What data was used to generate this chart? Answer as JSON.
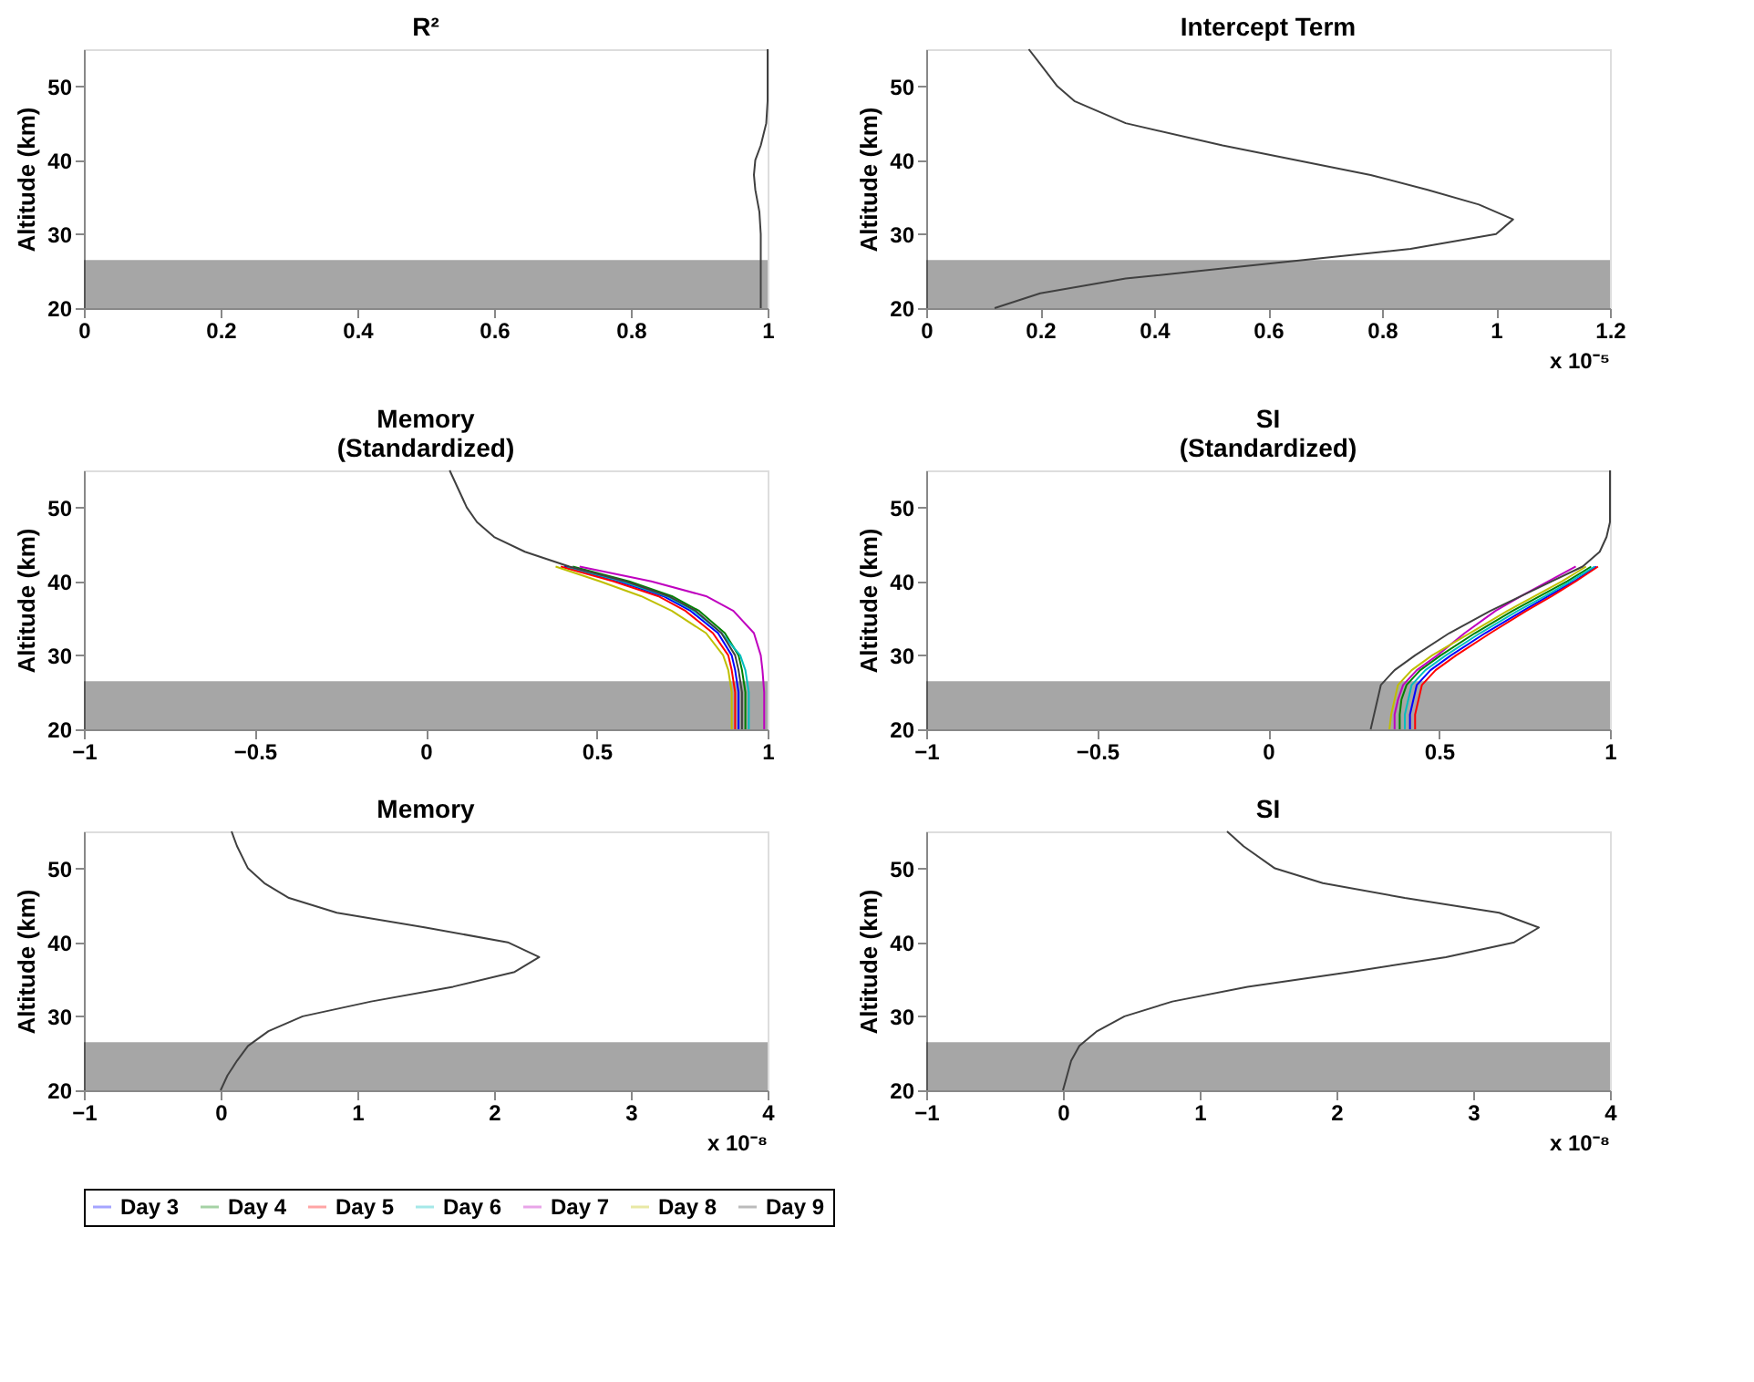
{
  "chart_data": [
    {
      "type": "line",
      "title": "R²",
      "ylabel": "Altitude (km)",
      "xlim": [
        0,
        1
      ],
      "xticks": [
        0,
        0.2,
        0.4,
        0.6,
        0.8,
        1
      ],
      "ylim": [
        20,
        55
      ],
      "yticks": [
        20,
        30,
        40,
        50
      ],
      "bands": [
        {
          "axis": "y",
          "from": 20,
          "to": 26.5,
          "color": "#000000"
        }
      ],
      "series": [
        {
          "color": "#404040",
          "x": [
            0.99,
            0.99,
            0.99,
            0.988,
            0.982,
            0.98,
            0.982,
            0.99,
            0.998,
            1.0,
            1.0
          ],
          "values": [
            20,
            25,
            30,
            33,
            36,
            38,
            40,
            42,
            45,
            48,
            55
          ]
        }
      ]
    },
    {
      "type": "line",
      "title": "Intercept Term",
      "ylabel": "Altitude (km)",
      "xlim": [
        0,
        1.2
      ],
      "xticks": [
        0,
        0.2,
        0.4,
        0.6,
        0.8,
        1,
        1.2
      ],
      "ylim": [
        20,
        55
      ],
      "yticks": [
        20,
        30,
        40,
        50
      ],
      "annotations": [
        "x 10⁻⁵"
      ],
      "bands": [
        {
          "axis": "y",
          "from": 20,
          "to": 26.5,
          "color": "#000000"
        }
      ],
      "series": [
        {
          "color": "#404040",
          "x": [
            0.12,
            0.2,
            0.35,
            0.6,
            0.85,
            1.0,
            1.03,
            0.97,
            0.88,
            0.78,
            0.65,
            0.52,
            0.35,
            0.26,
            0.23,
            0.2,
            0.18
          ],
          "values": [
            20,
            22,
            24,
            26,
            28,
            30,
            32,
            34,
            36,
            38,
            40,
            42,
            45,
            48,
            50,
            53,
            55
          ]
        }
      ]
    },
    {
      "type": "line",
      "title": "Memory\n(Standardized)",
      "ylabel": "Altitude (km)",
      "xlim": [
        -1,
        1
      ],
      "xticks": [
        -1,
        -0.5,
        0,
        0.5,
        1
      ],
      "ylim": [
        20,
        55
      ],
      "yticks": [
        20,
        30,
        40,
        50
      ],
      "legend": "bottom",
      "bands": [
        {
          "axis": "y",
          "from": 20,
          "to": 26.5,
          "color": "#000000"
        }
      ],
      "series": [
        {
          "name": "Day 3",
          "color": "#0000ff",
          "x": [
            0.915,
            0.915,
            0.905,
            0.895,
            0.855,
            0.775,
            0.695,
            0.565,
            0.405
          ],
          "values": [
            20,
            25,
            28,
            30,
            33,
            36,
            38,
            40,
            42
          ]
        },
        {
          "name": "Day 4",
          "color": "#008000",
          "x": [
            0.935,
            0.935,
            0.925,
            0.915,
            0.875,
            0.8,
            0.72,
            0.595,
            0.43
          ],
          "values": [
            20,
            25,
            28,
            30,
            33,
            36,
            38,
            40,
            42
          ]
        },
        {
          "name": "Day 5",
          "color": "#ff0000",
          "x": [
            0.905,
            0.905,
            0.895,
            0.885,
            0.84,
            0.76,
            0.68,
            0.55,
            0.395
          ],
          "values": [
            20,
            25,
            28,
            30,
            33,
            36,
            38,
            40,
            42
          ]
        },
        {
          "name": "Day 6",
          "color": "#00bfbf",
          "x": [
            0.945,
            0.945,
            0.935,
            0.92,
            0.865,
            0.785,
            0.705,
            0.575,
            0.415
          ],
          "values": [
            20,
            25,
            28,
            30,
            33,
            36,
            38,
            40,
            42
          ]
        },
        {
          "name": "Day 7",
          "color": "#bf00bf",
          "x": [
            0.99,
            0.99,
            0.985,
            0.98,
            0.96,
            0.9,
            0.82,
            0.66,
            0.45
          ],
          "values": [
            20,
            25,
            28,
            30,
            33,
            36,
            38,
            40,
            42
          ]
        },
        {
          "name": "Day 8",
          "color": "#bfbf00",
          "x": [
            0.895,
            0.895,
            0.885,
            0.87,
            0.82,
            0.72,
            0.63,
            0.51,
            0.38
          ],
          "values": [
            20,
            25,
            28,
            30,
            33,
            36,
            38,
            40,
            42
          ]
        },
        {
          "name": "Day 9",
          "color": "#404040",
          "x": [
            0.925,
            0.925,
            0.915,
            0.905,
            0.865,
            0.79,
            0.71,
            0.585,
            0.42,
            0.29,
            0.2,
            0.15,
            0.12,
            0.09,
            0.07
          ],
          "values": [
            20,
            25,
            28,
            30,
            33,
            36,
            38,
            40,
            42,
            44,
            46,
            48,
            50,
            53,
            55
          ]
        }
      ]
    },
    {
      "type": "line",
      "title": "SI\n(Standardized)",
      "ylabel": "Altitude (km)",
      "xlim": [
        -1,
        1
      ],
      "xticks": [
        -1,
        -0.5,
        0,
        0.5,
        1
      ],
      "ylim": [
        20,
        55
      ],
      "yticks": [
        20,
        30,
        40,
        50
      ],
      "bands": [
        {
          "axis": "y",
          "from": 20,
          "to": 26.5,
          "color": "#000000"
        }
      ],
      "series": [
        {
          "color": "#0000ff",
          "x": [
            0.415,
            0.415,
            0.425,
            0.435,
            0.475,
            0.535,
            0.635,
            0.745,
            0.82,
            0.895,
            0.96
          ],
          "values": [
            20,
            22,
            24,
            26,
            28,
            30,
            33,
            36,
            38,
            40,
            42
          ]
        },
        {
          "color": "#008000",
          "x": [
            0.385,
            0.385,
            0.39,
            0.405,
            0.445,
            0.505,
            0.605,
            0.715,
            0.795,
            0.875,
            0.945
          ],
          "values": [
            20,
            22,
            24,
            26,
            28,
            30,
            33,
            36,
            38,
            40,
            42
          ]
        },
        {
          "color": "#ff0000",
          "x": [
            0.43,
            0.43,
            0.44,
            0.45,
            0.49,
            0.55,
            0.65,
            0.755,
            0.83,
            0.9,
            0.965
          ],
          "values": [
            20,
            22,
            24,
            26,
            28,
            30,
            33,
            36,
            38,
            40,
            42
          ]
        },
        {
          "color": "#00bfbf",
          "x": [
            0.4,
            0.4,
            0.41,
            0.42,
            0.46,
            0.52,
            0.62,
            0.73,
            0.81,
            0.885,
            0.955
          ],
          "values": [
            20,
            22,
            24,
            26,
            28,
            30,
            33,
            36,
            38,
            40,
            42
          ]
        },
        {
          "color": "#bf00bf",
          "x": [
            0.37,
            0.37,
            0.38,
            0.395,
            0.435,
            0.495,
            0.575,
            0.665,
            0.74,
            0.82,
            0.9
          ],
          "values": [
            20,
            22,
            24,
            26,
            28,
            30,
            33,
            36,
            38,
            40,
            42
          ]
        },
        {
          "color": "#bfbf00",
          "x": [
            0.355,
            0.36,
            0.37,
            0.38,
            0.42,
            0.48,
            0.59,
            0.7,
            0.78,
            0.86,
            0.93
          ],
          "values": [
            20,
            22,
            24,
            26,
            28,
            30,
            33,
            36,
            38,
            40,
            42
          ]
        },
        {
          "color": "#404040",
          "x": [
            0.3,
            0.31,
            0.32,
            0.33,
            0.37,
            0.43,
            0.53,
            0.65,
            0.74,
            0.83,
            0.92,
            0.97,
            0.99,
            1.0,
            1.0
          ],
          "values": [
            20,
            22,
            24,
            26,
            28,
            30,
            33,
            36,
            38,
            40,
            42,
            44,
            46,
            48,
            55
          ]
        }
      ]
    },
    {
      "type": "line",
      "title": "Memory",
      "ylabel": "Altitude (km)",
      "xlim": [
        -1,
        4
      ],
      "xticks": [
        -1,
        0,
        1,
        2,
        3,
        4
      ],
      "ylim": [
        20,
        55
      ],
      "yticks": [
        20,
        30,
        40,
        50
      ],
      "annotations": [
        "x 10⁻⁸"
      ],
      "bands": [
        {
          "axis": "y",
          "from": 20,
          "to": 26.5,
          "color": "#000000"
        }
      ],
      "series": [
        {
          "color": "#404040",
          "x": [
            0,
            0.05,
            0.12,
            0.2,
            0.35,
            0.6,
            1.1,
            1.7,
            2.15,
            2.33,
            2.1,
            1.5,
            0.85,
            0.5,
            0.32,
            0.2,
            0.12,
            0.08
          ],
          "values": [
            20,
            22,
            24,
            26,
            28,
            30,
            32,
            34,
            36,
            38,
            40,
            42,
            44,
            46,
            48,
            50,
            53,
            55
          ]
        }
      ]
    },
    {
      "type": "line",
      "title": "SI",
      "ylabel": "Altitude (km)",
      "xlim": [
        -1,
        4
      ],
      "xticks": [
        -1,
        0,
        1,
        2,
        3,
        4
      ],
      "ylim": [
        20,
        55
      ],
      "yticks": [
        20,
        30,
        40,
        50
      ],
      "annotations": [
        "x 10⁻⁸"
      ],
      "bands": [
        {
          "axis": "y",
          "from": 20,
          "to": 26.5,
          "color": "#000000"
        }
      ],
      "series": [
        {
          "color": "#404040",
          "x": [
            0,
            0.03,
            0.06,
            0.12,
            0.25,
            0.45,
            0.8,
            1.35,
            2.1,
            2.8,
            3.3,
            3.48,
            3.19,
            2.5,
            1.9,
            1.55,
            1.32,
            1.2
          ],
          "values": [
            20,
            22,
            24,
            26,
            28,
            30,
            32,
            34,
            36,
            38,
            40,
            42,
            44,
            46,
            48,
            50,
            53,
            55
          ]
        }
      ]
    }
  ]
}
